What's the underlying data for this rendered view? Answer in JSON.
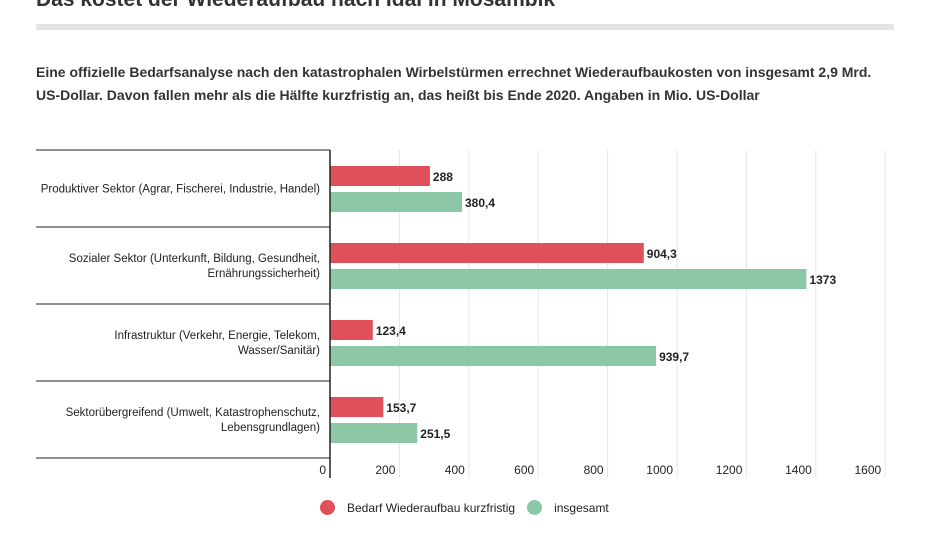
{
  "header": {
    "title": "Das kostet der Wiederaufbau nach Idai in Mosambik",
    "intro": "Eine offizielle Bedarfsanalyse nach den katastrophalen Wirbelstürmen errechnet Wiederaufbaukosten von insgesamt 2,9 Mrd. US-Dollar. Davon fallen mehr als die Hälfte kurzfristig an, das heißt bis Ende 2020. Angaben in Mio. US-Dollar"
  },
  "chart_data": {
    "type": "bar",
    "orientation": "horizontal",
    "categories": [
      [
        "Produktiver Sektor (Agrar, Fischerei, Industrie, Handel)"
      ],
      [
        "Sozialer Sektor (Unterkunft, Bildung, Gesundheit,",
        "Ernährungssicherheit)"
      ],
      [
        "Infrastruktur (Verkehr, Energie, Telekom,",
        "Wasser/Sanitär)"
      ],
      [
        "Sektorübergreifend (Umwelt, Katastrophenschutz,",
        "Lebensgrundlagen)"
      ]
    ],
    "series": [
      {
        "name": "Bedarf Wiederaufbau kurzfristig",
        "color": "#e0505a",
        "values": [
          288,
          904.3,
          123.4,
          153.7
        ],
        "labels": [
          "288",
          "904,3",
          "123,4",
          "153,7"
        ]
      },
      {
        "name": "insgesamt",
        "color": "#8cc7a6",
        "values": [
          380.4,
          1373,
          939.7,
          251.5
        ],
        "labels": [
          "380,4",
          "1373",
          "939,7",
          "251,5"
        ]
      }
    ],
    "xlim": [
      0,
      1600
    ],
    "xticks": [
      0,
      200,
      400,
      600,
      800,
      1000,
      1200,
      1400,
      1600
    ],
    "grid": true,
    "legend_position": "bottom"
  }
}
